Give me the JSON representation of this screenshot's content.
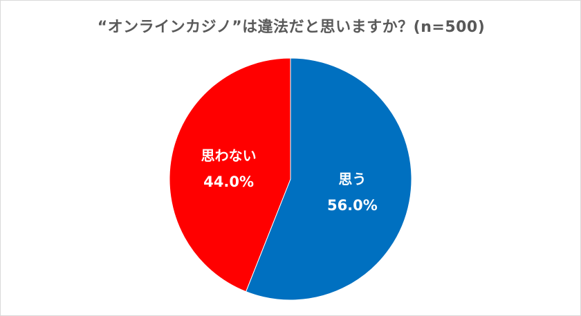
{
  "chart_data": {
    "type": "pie",
    "title": "“オンラインカジノ”は違法だと思いますか？(n=500)",
    "slices": [
      {
        "label": "思う",
        "value": 56.0,
        "value_label": "56.0%",
        "color": "#0070C0"
      },
      {
        "label": "思わない",
        "value": 44.0,
        "value_label": "44.0%",
        "color": "#FF0000"
      }
    ],
    "start": "12 o'clock",
    "direction": "clockwise",
    "legend": "none"
  }
}
